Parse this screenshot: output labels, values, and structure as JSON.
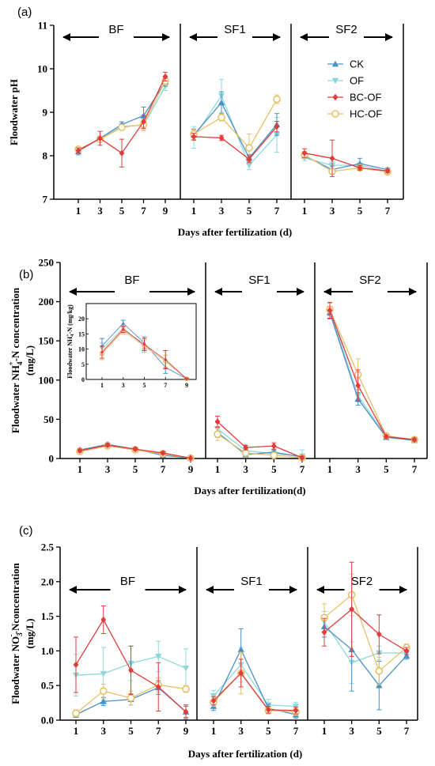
{
  "colors": {
    "CK": "#4a90c8",
    "OF": "#8ed8dc",
    "BC-OF": "#e03c3c",
    "HC-OF": "#e8c068"
  },
  "legend": [
    "CK",
    "OF",
    "BC-OF",
    "HC-OF"
  ],
  "chart_data": [
    {
      "type": "line",
      "panel_label": "(a)",
      "ylabel": "Floodwater pH",
      "xlabel": "Days after fertilization (d)",
      "ylim": [
        7,
        11
      ],
      "yticks": [
        7,
        8,
        9,
        10,
        11
      ],
      "sections": [
        {
          "name": "BF",
          "x": [
            1,
            3,
            5,
            7,
            9
          ],
          "series": [
            {
              "name": "CK",
              "values": [
                8.1,
                8.4,
                8.72,
                8.92,
                9.7
              ],
              "err": [
                0.08,
                0.05,
                0.06,
                0.2,
                0.1
              ]
            },
            {
              "name": "OF",
              "values": [
                8.12,
                8.38,
                8.68,
                8.7,
                9.6
              ],
              "err": [
                0.05,
                0.05,
                0.06,
                0.12,
                0.1
              ]
            },
            {
              "name": "BC-OF",
              "values": [
                8.12,
                8.4,
                8.06,
                8.78,
                9.82
              ],
              "err": [
                0.06,
                0.16,
                0.32,
                0.15,
                0.1
              ]
            },
            {
              "name": "HC-OF",
              "values": [
                8.15,
                8.38,
                8.65,
                8.72,
                9.72
              ],
              "err": [
                0.05,
                0.05,
                0.06,
                0.12,
                0.1
              ]
            }
          ]
        },
        {
          "name": "SF1",
          "x": [
            1,
            3,
            5,
            7
          ],
          "series": [
            {
              "name": "CK",
              "values": [
                8.48,
                9.22,
                7.95,
                8.72
              ],
              "err": [
                0.12,
                0.25,
                0.08,
                0.25
              ]
            },
            {
              "name": "OF",
              "values": [
                8.42,
                9.38,
                7.78,
                8.48
              ],
              "err": [
                0.25,
                0.38,
                0.1,
                0.4
              ]
            },
            {
              "name": "BC-OF",
              "values": [
                8.44,
                8.41,
                7.92,
                8.67
              ],
              "err": [
                0.08,
                0.06,
                0.08,
                0.12
              ]
            },
            {
              "name": "HC-OF",
              "values": [
                8.5,
                8.88,
                8.18,
                9.3
              ],
              "err": [
                0.12,
                0.08,
                0.32,
                0.1
              ]
            }
          ]
        },
        {
          "name": "SF2",
          "x": [
            1,
            3,
            5,
            7
          ],
          "series": [
            {
              "name": "CK",
              "values": [
                8.0,
                7.68,
                7.82,
                7.68
              ],
              "err": [
                0.06,
                0.08,
                0.12,
                0.04
              ]
            },
            {
              "name": "OF",
              "values": [
                7.95,
                7.78,
                7.78,
                7.64
              ],
              "err": [
                0.06,
                0.08,
                0.05,
                0.04
              ]
            },
            {
              "name": "BC-OF",
              "values": [
                8.06,
                7.94,
                7.72,
                7.65
              ],
              "err": [
                0.1,
                0.42,
                0.05,
                0.04
              ]
            },
            {
              "name": "HC-OF",
              "values": [
                8.02,
                7.64,
                7.72,
                7.63
              ],
              "err": [
                0.08,
                0.06,
                0.05,
                0.04
              ]
            }
          ]
        }
      ]
    },
    {
      "type": "line",
      "panel_label": "(b)",
      "ylabel_pre": "Floodwater NH",
      "ylabel_sub": "4",
      "ylabel_sup": "+",
      "ylabel_post": "-N concentration",
      "ylabel_line2": "(mg/L)",
      "xlabel": "Days after fertilization(d)",
      "ylim": [
        0,
        250
      ],
      "yticks": [
        0,
        50,
        100,
        150,
        200,
        250
      ],
      "sections": [
        {
          "name": "BF",
          "x": [
            1,
            3,
            5,
            7,
            9
          ],
          "series": [
            {
              "name": "CK",
              "values": [
                11,
                18,
                12,
                4,
                0.5
              ],
              "err": [
                2,
                2,
                2,
                2,
                0.5
              ]
            },
            {
              "name": "OF",
              "values": [
                9,
                16,
                11,
                6,
                0.5
              ],
              "err": [
                2,
                2,
                2,
                2,
                0.5
              ]
            },
            {
              "name": "BC-OF",
              "values": [
                10,
                17,
                12,
                7,
                0.5
              ],
              "err": [
                2,
                2,
                2,
                2,
                0.5
              ]
            },
            {
              "name": "HC-OF",
              "values": [
                9,
                16,
                11,
                6,
                0.5
              ],
              "err": [
                2,
                2,
                2,
                2,
                0.5
              ]
            }
          ]
        },
        {
          "name": "SF1",
          "x": [
            1,
            3,
            5,
            7
          ],
          "series": [
            {
              "name": "CK",
              "values": [
                33,
                5,
                8,
                2
              ],
              "err": [
                6,
                3,
                3,
                2
              ]
            },
            {
              "name": "OF",
              "values": [
                38,
                10,
                6,
                3
              ],
              "err": [
                8,
                4,
                4,
                8
              ]
            },
            {
              "name": "BC-OF",
              "values": [
                47,
                14,
                16,
                1
              ],
              "err": [
                7,
                3,
                4,
                2
              ]
            },
            {
              "name": "HC-OF",
              "values": [
                31,
                7,
                4,
                1
              ],
              "err": [
                8,
                3,
                3,
                2
              ]
            }
          ]
        },
        {
          "name": "SF2",
          "x": [
            1,
            3,
            5,
            7
          ],
          "series": [
            {
              "name": "CK",
              "values": [
                186,
                76,
                27,
                23
              ],
              "err": [
                8,
                8,
                2,
                2
              ]
            },
            {
              "name": "OF",
              "values": [
                190,
                80,
                28,
                24
              ],
              "err": [
                8,
                8,
                2,
                2
              ]
            },
            {
              "name": "BC-OF",
              "values": [
                189,
                93,
                28,
                24
              ],
              "err": [
                10,
                20,
                2,
                2
              ]
            },
            {
              "name": "HC-OF",
              "values": [
                190,
                107,
                29,
                24
              ],
              "err": [
                8,
                20,
                2,
                2
              ]
            }
          ]
        }
      ],
      "inset": {
        "ylabel_pre": "Floodwater NH",
        "ylabel_sub": "4",
        "ylabel_sup": "+",
        "ylabel_post": "-N (mg/kg)",
        "ylim": [
          0,
          25
        ],
        "yticks": [
          0,
          5,
          10,
          15,
          20
        ],
        "x": [
          1,
          3,
          5,
          7,
          9
        ],
        "series": [
          {
            "name": "CK",
            "values": [
              11,
              18.5,
              12,
              4,
              0.2
            ],
            "err": [
              2.5,
              1,
              2,
              2,
              0.2
            ]
          },
          {
            "name": "OF",
            "values": [
              10,
              17,
              11,
              6,
              0.2
            ],
            "err": [
              2,
              1,
              2,
              2,
              0.2
            ]
          },
          {
            "name": "BC-OF",
            "values": [
              9,
              16.5,
              11.5,
              6.5,
              0.2
            ],
            "err": [
              2,
              1,
              2,
              3,
              0.2
            ]
          },
          {
            "name": "HC-OF",
            "values": [
              8.5,
              16,
              11,
              6,
              0.2
            ],
            "err": [
              2,
              1,
              2,
              2,
              0.2
            ]
          }
        ]
      }
    },
    {
      "type": "line",
      "panel_label": "(c)",
      "ylabel_pre": "Floodwater NO",
      "ylabel_sub": "3",
      "ylabel_sup": "-",
      "ylabel_post": "-Nconcentration",
      "ylabel_line2": "(mg/L)",
      "xlabel": "Days after fertilization (d)",
      "ylim": [
        0,
        2.5
      ],
      "yticks": [
        0.0,
        0.5,
        1.0,
        1.5,
        2.0,
        2.5
      ],
      "ytick_labels": [
        "0.0",
        "0.5",
        "1.0",
        "1.5",
        "2.0",
        "2.5"
      ],
      "sections": [
        {
          "name": "BF",
          "x": [
            1,
            3,
            5,
            7,
            9
          ],
          "series": [
            {
              "name": "CK",
              "values": [
                0.08,
                0.27,
                0.3,
                0.47,
                0.12
              ],
              "err": [
                0.04,
                0.06,
                0.08,
                0.1,
                0.08
              ]
            },
            {
              "name": "OF",
              "values": [
                0.65,
                0.67,
                0.82,
                0.92,
                0.75
              ],
              "err": [
                0.3,
                0.38,
                0.25,
                0.22,
                0.28
              ]
            },
            {
              "name": "BC-OF",
              "values": [
                0.8,
                1.45,
                0.72,
                0.48,
                0.12
              ],
              "err": [
                0.4,
                0.2,
                0.35,
                0.35,
                0.1
              ]
            },
            {
              "name": "HC-OF",
              "values": [
                0.1,
                0.42,
                0.32,
                0.51,
                0.45
              ],
              "err": [
                0.05,
                0.1,
                0.1,
                0.1,
                0.05
              ]
            }
          ]
        },
        {
          "name": "SF1",
          "x": [
            1,
            3,
            5,
            7
          ],
          "series": [
            {
              "name": "CK",
              "values": [
                0.2,
                1.02,
                0.17,
                0.08
              ],
              "err": [
                0.06,
                0.3,
                0.06,
                0.05
              ]
            },
            {
              "name": "OF",
              "values": [
                0.35,
                0.8,
                0.22,
                0.2
              ],
              "err": [
                0.08,
                0.25,
                0.08,
                0.06
              ]
            },
            {
              "name": "BC-OF",
              "values": [
                0.28,
                0.68,
                0.15,
                0.14
              ],
              "err": [
                0.06,
                0.2,
                0.05,
                0.05
              ]
            },
            {
              "name": "HC-OF",
              "values": [
                0.26,
                0.68,
                0.14,
                0.12
              ],
              "err": [
                0.06,
                0.3,
                0.05,
                0.05
              ]
            }
          ]
        },
        {
          "name": "SF2",
          "x": [
            1,
            3,
            5,
            7
          ],
          "series": [
            {
              "name": "CK",
              "values": [
                1.35,
                1.02,
                0.5,
                0.93
              ],
              "err": [
                0.15,
                0.6,
                0.35,
                0.05
              ]
            },
            {
              "name": "OF",
              "values": [
                1.42,
                0.83,
                0.97,
                0.97
              ],
              "err": [
                0.15,
                0.3,
                0.1,
                0.05
              ]
            },
            {
              "name": "BC-OF",
              "values": [
                1.27,
                1.6,
                1.24,
                1.0
              ],
              "err": [
                0.2,
                0.68,
                0.28,
                0.05
              ]
            },
            {
              "name": "HC-OF",
              "values": [
                1.48,
                1.81,
                0.71,
                1.05
              ],
              "err": [
                0.2,
                0.3,
                0.2,
                0.05
              ]
            }
          ]
        }
      ]
    }
  ]
}
